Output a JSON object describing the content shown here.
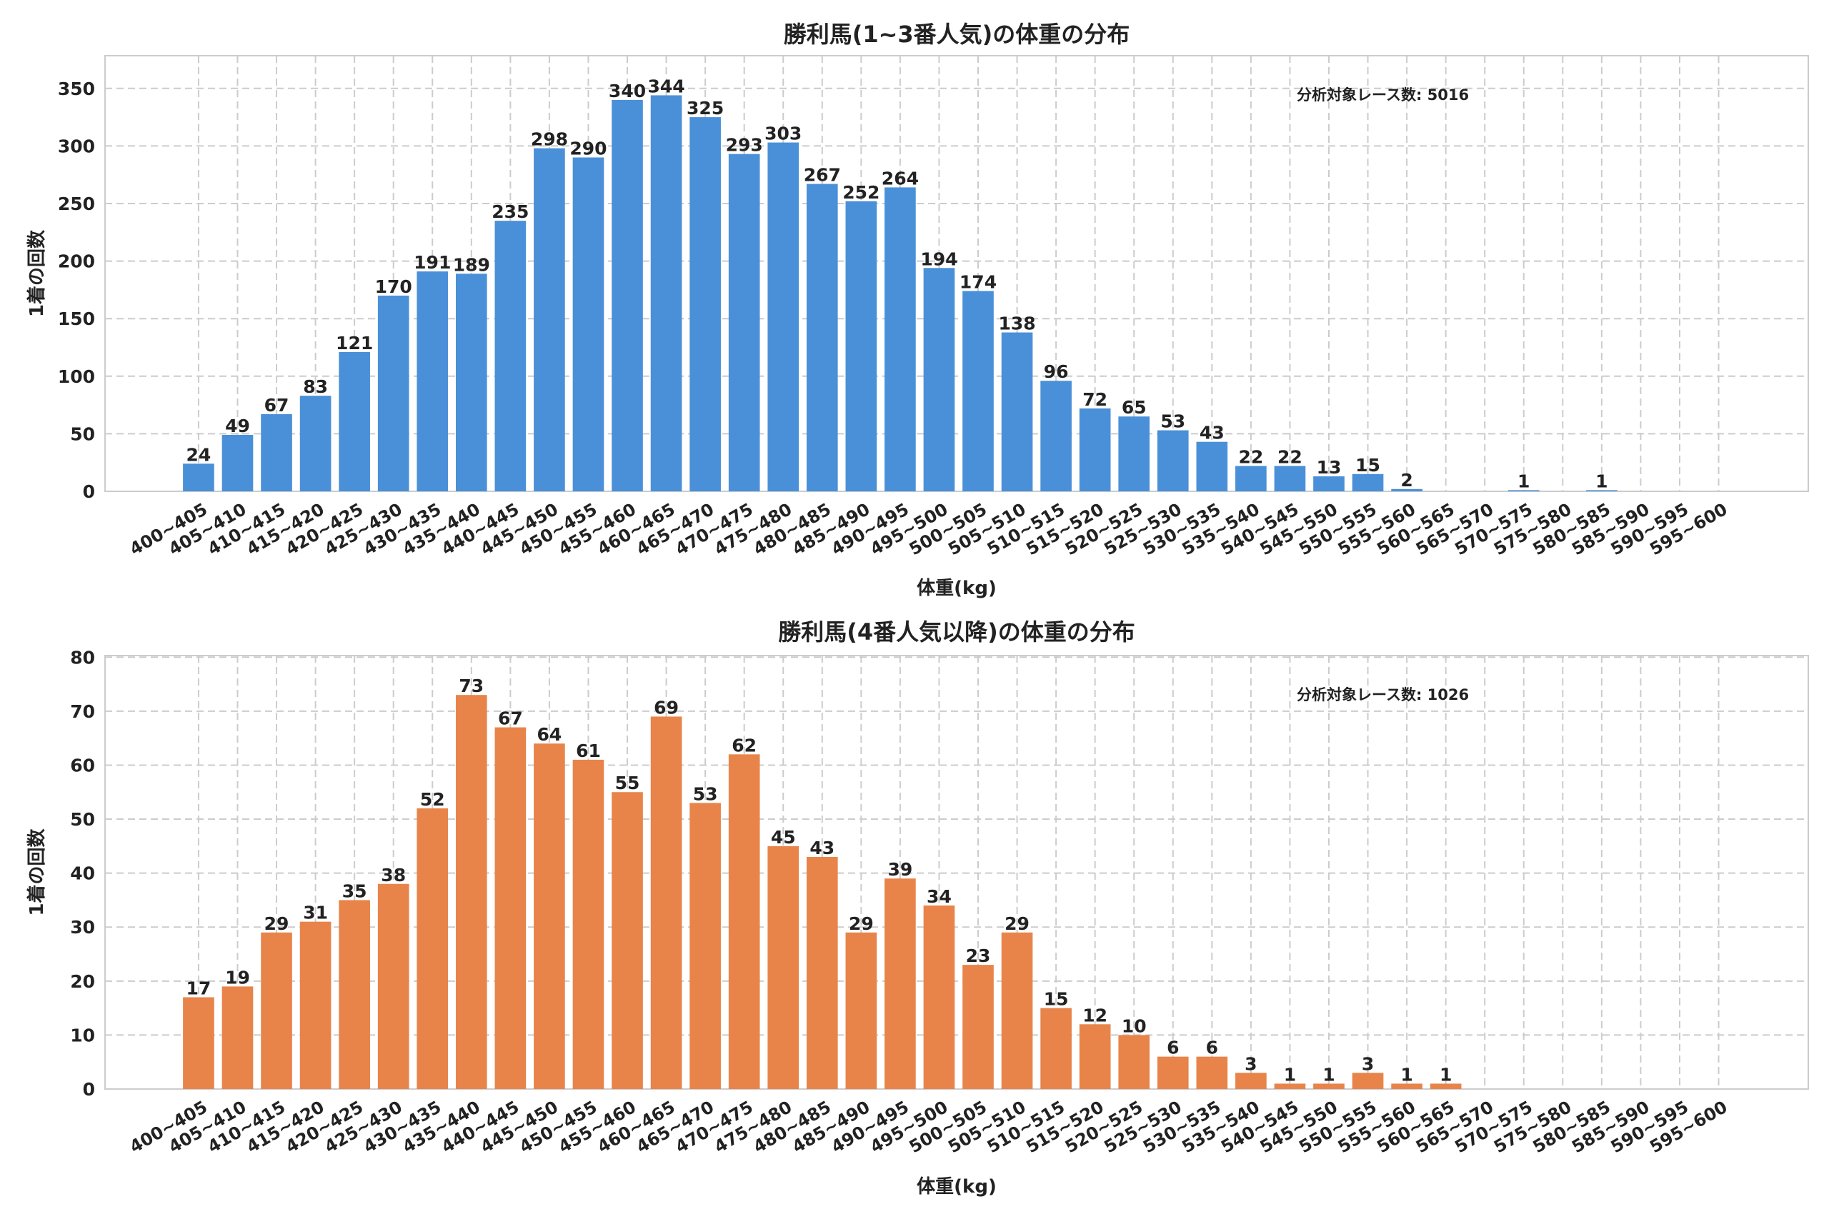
{
  "chart_data": [
    {
      "type": "bar",
      "title": "勝利馬(1~3番人気)の体重の分布",
      "xlabel": "体重(kg)",
      "ylabel": "1着の回数",
      "annotation": "分析対象レース数: 5016",
      "color": "#4a90d9",
      "ylim": [
        0,
        378.4
      ],
      "yticks": [
        0,
        50,
        100,
        150,
        200,
        250,
        300,
        350
      ],
      "grid": true,
      "categories": [
        "400~405",
        "405~410",
        "410~415",
        "415~420",
        "420~425",
        "425~430",
        "430~435",
        "435~440",
        "440~445",
        "445~450",
        "450~455",
        "455~460",
        "460~465",
        "465~470",
        "470~475",
        "475~480",
        "480~485",
        "485~490",
        "490~495",
        "495~500",
        "500~505",
        "505~510",
        "510~515",
        "515~520",
        "520~525",
        "525~530",
        "530~535",
        "535~540",
        "540~545",
        "545~550",
        "550~555",
        "555~560",
        "560~565",
        "565~570",
        "570~575",
        "575~580",
        "580~585",
        "585~590",
        "590~595",
        "595~600"
      ],
      "values": [
        24,
        49,
        67,
        83,
        121,
        170,
        191,
        189,
        235,
        298,
        290,
        340,
        344,
        325,
        293,
        303,
        267,
        252,
        264,
        194,
        174,
        138,
        96,
        72,
        65,
        53,
        43,
        22,
        22,
        13,
        15,
        2,
        0,
        0,
        1,
        0,
        1,
        0,
        0,
        0
      ]
    },
    {
      "type": "bar",
      "title": "勝利馬(4番人気以降)の体重の分布",
      "xlabel": "体重(kg)",
      "ylabel": "1着の回数",
      "annotation": "分析対象レース数: 1026",
      "color": "#e8844a",
      "ylim": [
        0,
        80.3
      ],
      "yticks": [
        0,
        10,
        20,
        30,
        40,
        50,
        60,
        70,
        80
      ],
      "grid": true,
      "categories": [
        "400~405",
        "405~410",
        "410~415",
        "415~420",
        "420~425",
        "425~430",
        "430~435",
        "435~440",
        "440~445",
        "445~450",
        "450~455",
        "455~460",
        "460~465",
        "465~470",
        "470~475",
        "475~480",
        "480~485",
        "485~490",
        "490~495",
        "495~500",
        "500~505",
        "505~510",
        "510~515",
        "515~520",
        "520~525",
        "525~530",
        "530~535",
        "535~540",
        "540~545",
        "545~550",
        "550~555",
        "555~560",
        "560~565",
        "565~570",
        "570~575",
        "575~580",
        "580~585",
        "585~590",
        "590~595",
        "595~600"
      ],
      "values": [
        17,
        19,
        29,
        31,
        35,
        38,
        52,
        73,
        67,
        64,
        61,
        55,
        69,
        53,
        62,
        45,
        43,
        29,
        39,
        34,
        23,
        29,
        15,
        12,
        10,
        6,
        6,
        3,
        1,
        1,
        3,
        1,
        1,
        0,
        0,
        0,
        0,
        0,
        0,
        0
      ]
    }
  ]
}
